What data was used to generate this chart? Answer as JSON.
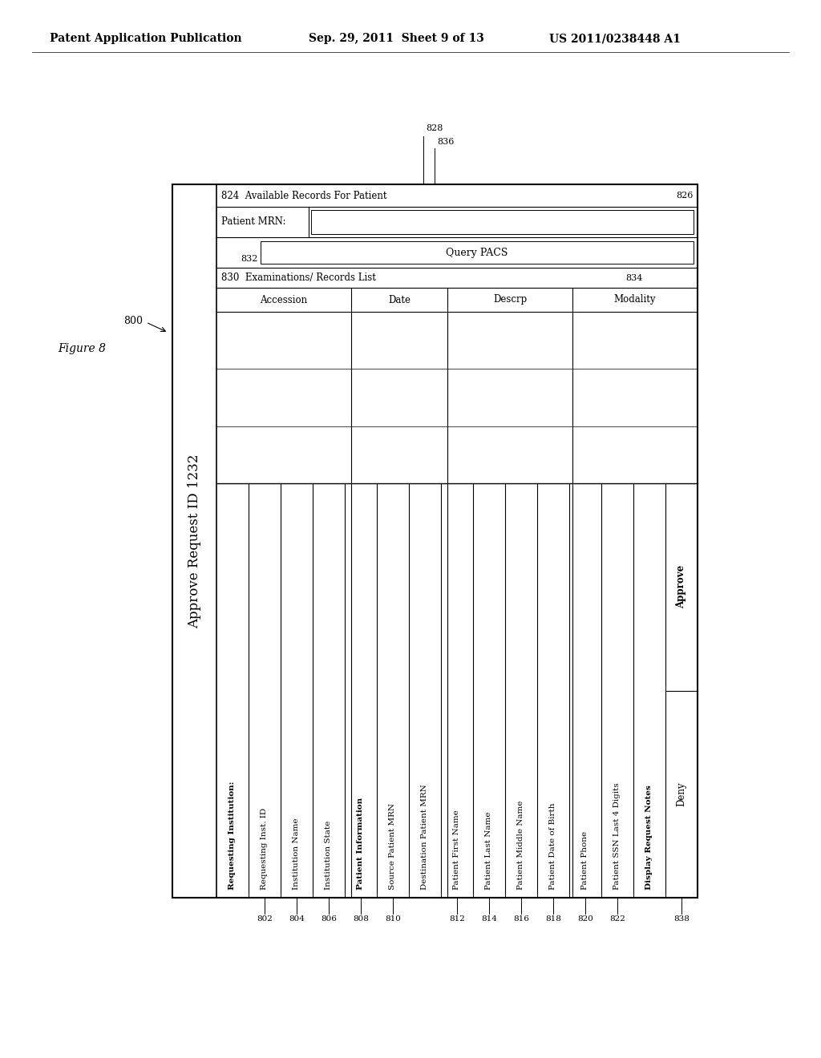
{
  "header_text": "Patent Application Publication",
  "header_date": "Sep. 29, 2011  Sheet 9 of 13",
  "header_patent": "US 2011/0238448 A1",
  "figure_label": "Figure 8",
  "title": "Approve Request ID 1232",
  "bg_color": "#ffffff",
  "ref_800": "800",
  "col_labels_left": [
    {
      "label": "Requesting Institution:",
      "bold": true,
      "ref": null
    },
    {
      "label": "Requesting Inst. ID",
      "bold": false,
      "ref": "802"
    },
    {
      "label": "Institution Name",
      "bold": false,
      "ref": "804"
    },
    {
      "label": "Institution State",
      "bold": false,
      "ref": "806"
    },
    {
      "label": "Patient Information",
      "bold": true,
      "ref": "808"
    },
    {
      "label": "Source Patient MRN",
      "bold": false,
      "ref": "810"
    },
    {
      "label": "Destination Patient MRN",
      "bold": false,
      "ref": null
    },
    {
      "label": "Patient First Name",
      "bold": false,
      "ref": "812"
    },
    {
      "label": "Patient Last Name",
      "bold": false,
      "ref": "814"
    },
    {
      "label": "Patient Middle Name",
      "bold": false,
      "ref": "816"
    },
    {
      "label": "Patient Date of Birth",
      "bold": false,
      "ref": "818"
    },
    {
      "label": "Patient Phone",
      "bold": false,
      "ref": "820"
    },
    {
      "label": "Patient SSN Last 4 Digits",
      "bold": false,
      "ref": "822"
    },
    {
      "label": "Display Request Notes",
      "bold": true,
      "ref": null
    }
  ],
  "approve_label": "Approve",
  "deny_label": "Deny",
  "ref_838": "838",
  "avail_records_label": "824  Available Records For Patient",
  "ref_826": "826",
  "patient_mrn_label": "Patient MRN:",
  "ref_832": "832",
  "query_pacs_label": "Query PACS",
  "exam_label": "Examinations/ Records List",
  "ref_830": "830",
  "ref_834": "834",
  "ref_828": "828",
  "ref_836": "836",
  "table_cols": [
    "Accession",
    "Date",
    "Descrp",
    "Modality"
  ]
}
